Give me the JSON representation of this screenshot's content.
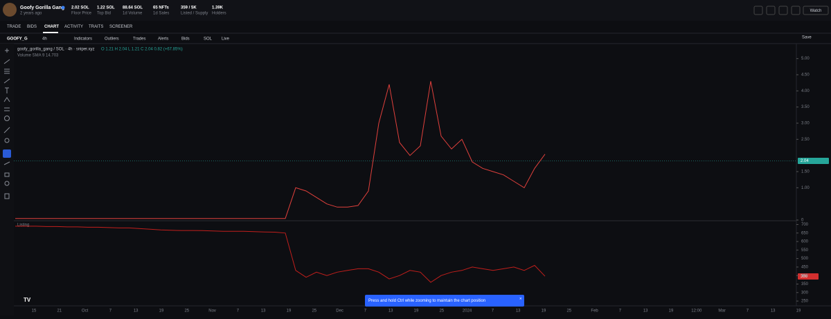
{
  "header": {
    "collection": "Goofy Gorilla Gang",
    "age": "2 years ago",
    "watch": "Watch",
    "stats": [
      {
        "value": "2.02 SOL",
        "label": "Floor Price"
      },
      {
        "value": "1.22 SOL",
        "label": "Top Bid"
      },
      {
        "value": "88.64 SOL",
        "label": "1d Volume"
      },
      {
        "value": "65 NFTs",
        "label": "1d Sales"
      },
      {
        "value": "359 / 5K",
        "label": "Listed / Supply"
      },
      {
        "value": "1.39K",
        "label": "Holders"
      }
    ]
  },
  "tabs": [
    "TRADE",
    "BIDS",
    "CHART",
    "ACTIVITY",
    "TRAITS",
    "SCREENER"
  ],
  "toolbar": {
    "symbol": "GOOFY_G",
    "interval": "4h",
    "items": [
      "Indicators",
      "Outliers",
      "Trades",
      "Alerts",
      "Bids",
      "SOL",
      "Live"
    ],
    "save": "Save"
  },
  "price_chart": {
    "type": "line",
    "legend": "goofy_gorilla_gang / SOL · 4h · sniper.xyz",
    "ohlc": "O 1.21 H 2.04 L 1.21 C 2.04 0.82 (+67.85%)",
    "volume": "Volume SMA 9 14.703",
    "last_label": "2.04",
    "color": "#e0403c",
    "ylim": [
      0,
      5.4
    ],
    "yticks": [
      0,
      {
        "value": 1,
        "label": "1.00"
      },
      {
        "value": 1.5,
        "label": "1.50"
      },
      {
        "value": 2.5,
        "label": "2.50"
      },
      {
        "value": 3,
        "label": "3.00"
      },
      {
        "value": 3.5,
        "label": "3.50"
      },
      {
        "value": 4,
        "label": "4.00"
      },
      {
        "value": 4.5,
        "label": "4.50"
      },
      {
        "value": 5,
        "label": "5.00"
      }
    ],
    "values": [
      0.05,
      0.05,
      0.05,
      0.05,
      0.05,
      0.05,
      0.05,
      0.05,
      0.05,
      0.05,
      0.05,
      0.05,
      0.05,
      0.05,
      0.05,
      0.05,
      0.05,
      0.05,
      0.05,
      0.05,
      0.05,
      0.05,
      0.05,
      0.05,
      0.05,
      0.05,
      0.05,
      1.0,
      0.9,
      0.7,
      0.5,
      0.4,
      0.4,
      0.45,
      0.9,
      3.0,
      4.2,
      2.4,
      2.0,
      2.3,
      4.3,
      2.6,
      2.2,
      2.5,
      1.8,
      1.6,
      1.5,
      1.4,
      1.2,
      1.0,
      1.6,
      2.04
    ]
  },
  "listing_chart": {
    "type": "line",
    "label": "Listing",
    "last_label": "396",
    "color": "#c21f1c",
    "ylim": [
      230,
      710
    ],
    "yticks": [
      250,
      300,
      350,
      400,
      450,
      500,
      550,
      600,
      650,
      700
    ],
    "values": [
      690,
      690,
      690,
      688,
      688,
      686,
      686,
      684,
      684,
      682,
      680,
      680,
      676,
      672,
      668,
      666,
      665,
      665,
      664,
      662,
      660,
      660,
      660,
      658,
      656,
      655,
      650,
      430,
      390,
      420,
      400,
      420,
      430,
      440,
      440,
      420,
      380,
      400,
      430,
      420,
      360,
      400,
      420,
      430,
      450,
      440,
      430,
      440,
      450,
      430,
      460,
      396
    ]
  },
  "x_labels": [
    "15",
    "21",
    "Oct",
    "7",
    "13",
    "19",
    "25",
    "Nov",
    "7",
    "13",
    "19",
    "25",
    "Dec",
    "7",
    "13",
    "19",
    "25",
    "2024",
    "7",
    "13",
    "19",
    "25",
    "Feb",
    "7",
    "13",
    "19",
    "12:00",
    "Mar",
    "7",
    "13",
    "19"
  ],
  "toast": "Press and hold Ctrl while zooming to maintain the chart position"
}
